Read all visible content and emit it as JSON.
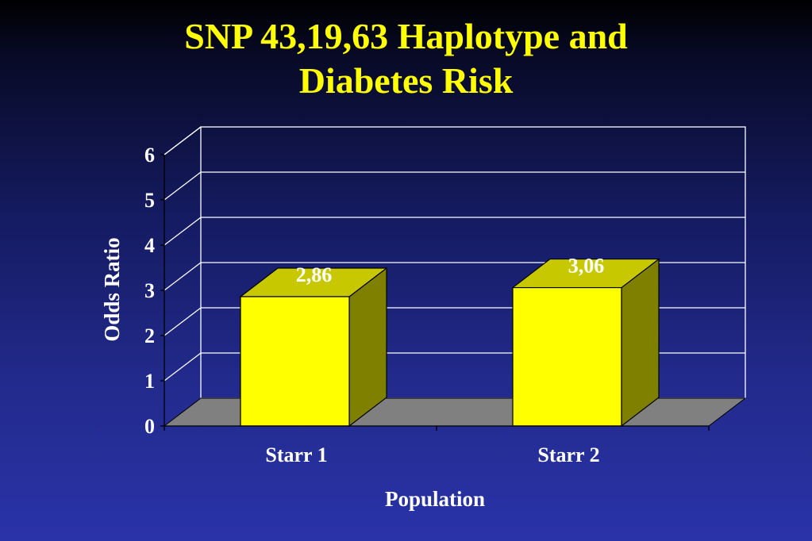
{
  "slide": {
    "title_line1": "SNP 43,19,63 Haplotype and",
    "title_line2": "Diabetes Risk"
  },
  "colors": {
    "title": "#ffff00",
    "bar_front": "#ffff00",
    "bar_top": "#c8c800",
    "bar_side": "#808000",
    "floor": "#808080",
    "gridline": "#ffffff",
    "text": "#ffffff"
  },
  "chart_data": {
    "type": "bar",
    "title": "SNP 43,19,63 Haplotype and Diabetes Risk",
    "xlabel": "Population",
    "ylabel": "Odds Ratio",
    "categories": [
      "Starr 1",
      "Starr 2"
    ],
    "values": [
      2.86,
      3.06
    ],
    "data_labels": [
      "2,86",
      "3,06"
    ],
    "ylim": [
      0,
      6
    ],
    "yticks": [
      0,
      1,
      2,
      3,
      4,
      5,
      6
    ],
    "grid": true,
    "legend": "none",
    "style": "3d"
  }
}
